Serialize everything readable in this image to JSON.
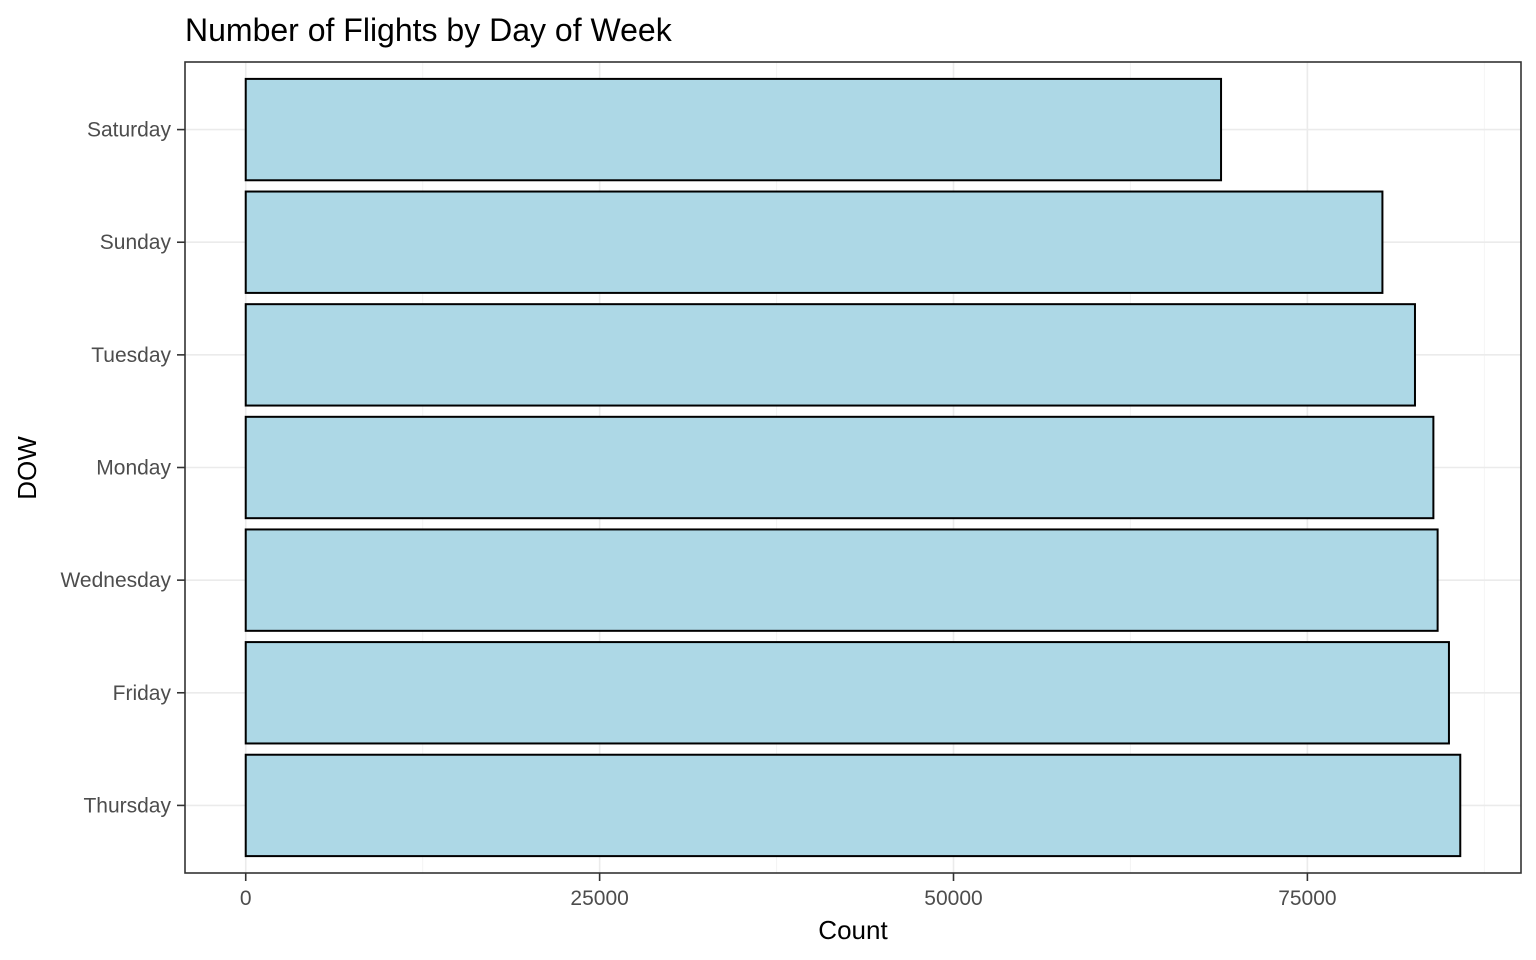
{
  "chart_data": {
    "type": "bar",
    "orientation": "horizontal",
    "title": "Number of Flights by Day of Week",
    "xlabel": "Count",
    "ylabel": "DOW",
    "categories": [
      "Thursday",
      "Friday",
      "Wednesday",
      "Monday",
      "Tuesday",
      "Sunday",
      "Saturday"
    ],
    "values": [
      85800,
      85000,
      84200,
      83900,
      82600,
      80300,
      68900
    ],
    "xticks": [
      0,
      25000,
      50000,
      75000
    ],
    "xtick_labels": [
      "0",
      "25000",
      "50000",
      "75000"
    ],
    "xlim": [
      -4290,
      90090
    ],
    "grid": true,
    "colors": {
      "bar_fill": "#add8e6",
      "bar_outline": "#000000",
      "grid_major": "#ebebeb",
      "grid_minor": "#f4f4f4",
      "panel_border": "#333333",
      "tick_text": "#4d4d4d"
    }
  }
}
